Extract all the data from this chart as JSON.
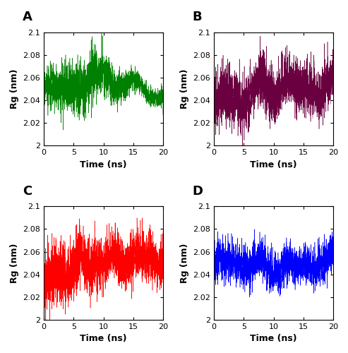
{
  "panels": [
    "A",
    "B",
    "C",
    "D"
  ],
  "colors": [
    "#008000",
    "#6b0040",
    "#ff0000",
    "#0000ff"
  ],
  "xlabel": "Time (ns)",
  "ylabel": "Rg (nm)",
  "xlim": [
    0,
    20
  ],
  "ylim": [
    2.0,
    2.1
  ],
  "xticks": [
    0,
    5,
    10,
    15,
    20
  ],
  "yticks": [
    2.0,
    2.02,
    2.04,
    2.06,
    2.08,
    2.1
  ],
  "n_points": 2001,
  "panel_label_fontsize": 13,
  "axis_label_fontsize": 9,
  "tick_fontsize": 8,
  "linewidth": 0.35
}
